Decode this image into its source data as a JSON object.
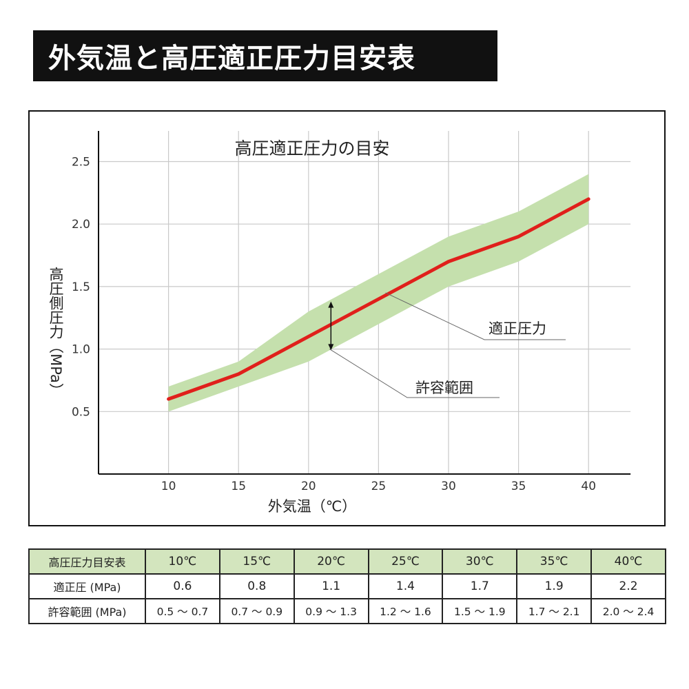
{
  "page": {
    "banner_title": "外気温と高圧適正圧力目安表"
  },
  "chart_data": {
    "type": "line",
    "title": "高圧適正圧力の目安",
    "xlabel": "外気温（℃）",
    "ylabel": "高圧側圧力（MPa）",
    "x": [
      10,
      15,
      20,
      25,
      30,
      35,
      40
    ],
    "xticks": [
      "10",
      "15",
      "20",
      "25",
      "30",
      "35",
      "40"
    ],
    "yticks": [
      0.5,
      1.0,
      1.5,
      2.0,
      2.5
    ],
    "ytick_labels": [
      "0.5",
      "1.0",
      "1.5",
      "2.0",
      "2.5"
    ],
    "xlim": [
      5,
      43
    ],
    "ylim": [
      0,
      2.5
    ],
    "grid": true,
    "series": [
      {
        "name": "適正圧力",
        "values": [
          0.6,
          0.8,
          1.1,
          1.4,
          1.7,
          1.9,
          2.2
        ],
        "color": "#e0201b"
      }
    ],
    "band": {
      "name": "許容範囲",
      "lower": [
        0.5,
        0.7,
        0.9,
        1.2,
        1.5,
        1.7,
        2.0
      ],
      "upper": [
        0.7,
        0.9,
        1.3,
        1.6,
        1.9,
        2.1,
        2.4
      ],
      "color": "#c5e0ad"
    },
    "annotations": [
      {
        "text": "適正圧力",
        "x": 25.5,
        "y": 1.4
      },
      {
        "text": "許容範囲",
        "x": 21.5,
        "y": 1.0
      }
    ]
  },
  "table": {
    "corner": "高圧圧力目安表",
    "headers": [
      "10℃",
      "15℃",
      "20℃",
      "25℃",
      "30℃",
      "35℃",
      "40℃"
    ],
    "rows": [
      {
        "label": "適正圧 (MPa)",
        "cells": [
          "0.6",
          "0.8",
          "1.1",
          "1.4",
          "1.7",
          "1.9",
          "2.2"
        ]
      },
      {
        "label": "許容範囲 (MPa)",
        "cells": [
          "0.5 〜 0.7",
          "0.7 〜 0.9",
          "0.9 〜 1.3",
          "1.2 〜 1.6",
          "1.5 〜 1.9",
          "1.7 〜 2.1",
          "2.0 〜 2.4"
        ]
      }
    ]
  }
}
